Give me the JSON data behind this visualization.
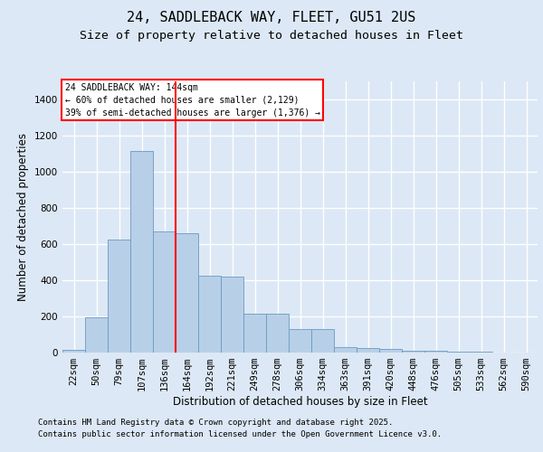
{
  "title1": "24, SADDLEBACK WAY, FLEET, GU51 2US",
  "title2": "Size of property relative to detached houses in Fleet",
  "xlabel": "Distribution of detached houses by size in Fleet",
  "ylabel": "Number of detached properties",
  "categories": [
    "22sqm",
    "50sqm",
    "79sqm",
    "107sqm",
    "136sqm",
    "164sqm",
    "192sqm",
    "221sqm",
    "249sqm",
    "278sqm",
    "306sqm",
    "334sqm",
    "363sqm",
    "391sqm",
    "420sqm",
    "448sqm",
    "476sqm",
    "505sqm",
    "533sqm",
    "562sqm",
    "590sqm"
  ],
  "values": [
    15,
    195,
    625,
    1115,
    670,
    660,
    425,
    420,
    215,
    215,
    130,
    130,
    30,
    25,
    20,
    10,
    8,
    4,
    3,
    2,
    1
  ],
  "bar_color": "#b8cfe8",
  "bar_edge_color": "#6b9bbf",
  "vline_index": 4.5,
  "vline_color": "red",
  "annotation_title": "24 SADDLEBACK WAY: 144sqm",
  "annotation_line1": "← 60% of detached houses are smaller (2,129)",
  "annotation_line2": "39% of semi-detached houses are larger (1,376) →",
  "annotation_box_color": "white",
  "annotation_box_edge": "red",
  "background_color": "#dce8f5",
  "plot_bg_color": "#dce8f5",
  "grid_color": "white",
  "ylim": [
    0,
    1500
  ],
  "yticks": [
    0,
    200,
    400,
    600,
    800,
    1000,
    1200,
    1400
  ],
  "footnote1": "Contains HM Land Registry data © Crown copyright and database right 2025.",
  "footnote2": "Contains public sector information licensed under the Open Government Licence v3.0.",
  "title1_fontsize": 11,
  "title2_fontsize": 9.5,
  "tick_fontsize": 7.5,
  "ylabel_fontsize": 8.5,
  "xlabel_fontsize": 8.5,
  "footnote_fontsize": 6.5
}
